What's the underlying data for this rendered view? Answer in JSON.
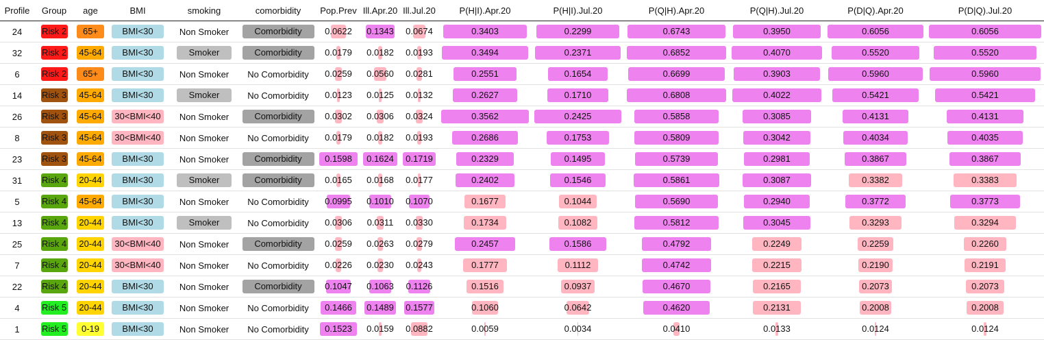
{
  "headers": [
    "Profile",
    "Group",
    "age",
    "BMI",
    "smoking",
    "comorbidity",
    "Pop.Prev",
    "Ill.Apr.20",
    "Ill.Jul.20",
    "P(H|I).Apr.20",
    "P(H|I).Jul.20",
    "P(Q|H).Apr.20",
    "P(Q|H).Jul.20",
    "P(D|Q).Apr.20",
    "P(D|Q).Jul.20"
  ],
  "colors": {
    "risk2": "#ff1a1a",
    "risk3": "#a0520f",
    "risk4": "#5aa60f",
    "risk5": "#22ee22",
    "age65": "#ff8c1a",
    "age4564": "#ffaa00",
    "age2044": "#ffd400",
    "age019": "#ffff33",
    "bmi_low": "#b0dbe6",
    "bmi_mid": "#ffb6c1",
    "smoker": "#bfbfbf",
    "comorbidity": "#a3a3a3",
    "bar_pink": "#ffb6c1",
    "bar_violet": "#ee82ee"
  },
  "rows": [
    {
      "profile": "24",
      "group": "Risk 2",
      "age": "65+",
      "bmi": "BMI<30",
      "smoking": "Non Smoker",
      "comorbidity": "Comorbidity",
      "pop_prev": "0.0622",
      "ill_apr": "0.1343",
      "ill_jul": "0.0674",
      "phi_apr": "0.3403",
      "phi_jul": "0.2299",
      "pqh_apr": "0.6743",
      "pqh_jul": "0.3950",
      "pdq_apr": "0.6056",
      "pdq_jul": "0.6056"
    },
    {
      "profile": "32",
      "group": "Risk 2",
      "age": "45-64",
      "bmi": "BMI<30",
      "smoking": "Smoker",
      "comorbidity": "Comorbidity",
      "pop_prev": "0.0179",
      "ill_apr": "0.0182",
      "ill_jul": "0.0193",
      "phi_apr": "0.3494",
      "phi_jul": "0.2371",
      "pqh_apr": "0.6852",
      "pqh_jul": "0.4070",
      "pdq_apr": "0.5520",
      "pdq_jul": "0.5520"
    },
    {
      "profile": "6",
      "group": "Risk 2",
      "age": "65+",
      "bmi": "BMI<30",
      "smoking": "Non Smoker",
      "comorbidity": "No Comorbidity",
      "pop_prev": "0.0259",
      "ill_apr": "0.0560",
      "ill_jul": "0.0281",
      "phi_apr": "0.2551",
      "phi_jul": "0.1654",
      "pqh_apr": "0.6699",
      "pqh_jul": "0.3903",
      "pdq_apr": "0.5960",
      "pdq_jul": "0.5960"
    },
    {
      "profile": "14",
      "group": "Risk 3",
      "age": "45-64",
      "bmi": "BMI<30",
      "smoking": "Smoker",
      "comorbidity": "No Comorbidity",
      "pop_prev": "0.0123",
      "ill_apr": "0.0125",
      "ill_jul": "0.0132",
      "phi_apr": "0.2627",
      "phi_jul": "0.1710",
      "pqh_apr": "0.6808",
      "pqh_jul": "0.4022",
      "pdq_apr": "0.5421",
      "pdq_jul": "0.5421"
    },
    {
      "profile": "26",
      "group": "Risk 3",
      "age": "45-64",
      "bmi": "30<BMI<40",
      "smoking": "Non Smoker",
      "comorbidity": "Comorbidity",
      "pop_prev": "0.0302",
      "ill_apr": "0.0306",
      "ill_jul": "0.0324",
      "phi_apr": "0.3562",
      "phi_jul": "0.2425",
      "pqh_apr": "0.5858",
      "pqh_jul": "0.3085",
      "pdq_apr": "0.4131",
      "pdq_jul": "0.4131"
    },
    {
      "profile": "8",
      "group": "Risk 3",
      "age": "45-64",
      "bmi": "30<BMI<40",
      "smoking": "Non Smoker",
      "comorbidity": "No Comorbidity",
      "pop_prev": "0.0179",
      "ill_apr": "0.0182",
      "ill_jul": "0.0193",
      "phi_apr": "0.2686",
      "phi_jul": "0.1753",
      "pqh_apr": "0.5809",
      "pqh_jul": "0.3042",
      "pdq_apr": "0.4034",
      "pdq_jul": "0.4035"
    },
    {
      "profile": "23",
      "group": "Risk 3",
      "age": "45-64",
      "bmi": "BMI<30",
      "smoking": "Non Smoker",
      "comorbidity": "Comorbidity",
      "pop_prev": "0.1598",
      "ill_apr": "0.1624",
      "ill_jul": "0.1719",
      "phi_apr": "0.2329",
      "phi_jul": "0.1495",
      "pqh_apr": "0.5739",
      "pqh_jul": "0.2981",
      "pdq_apr": "0.3867",
      "pdq_jul": "0.3867"
    },
    {
      "profile": "31",
      "group": "Risk 4",
      "age": "20-44",
      "bmi": "BMI<30",
      "smoking": "Smoker",
      "comorbidity": "Comorbidity",
      "pop_prev": "0.0165",
      "ill_apr": "0.0168",
      "ill_jul": "0.0177",
      "phi_apr": "0.2402",
      "phi_jul": "0.1546",
      "pqh_apr": "0.5861",
      "pqh_jul": "0.3087",
      "pdq_apr": "0.3382",
      "pdq_jul": "0.3383"
    },
    {
      "profile": "5",
      "group": "Risk 4",
      "age": "45-64",
      "bmi": "BMI<30",
      "smoking": "Non Smoker",
      "comorbidity": "No Comorbidity",
      "pop_prev": "0.0995",
      "ill_apr": "0.1010",
      "ill_jul": "0.1070",
      "phi_apr": "0.1677",
      "phi_jul": "0.1044",
      "pqh_apr": "0.5690",
      "pqh_jul": "0.2940",
      "pdq_apr": "0.3772",
      "pdq_jul": "0.3773"
    },
    {
      "profile": "13",
      "group": "Risk 4",
      "age": "20-44",
      "bmi": "BMI<30",
      "smoking": "Smoker",
      "comorbidity": "No Comorbidity",
      "pop_prev": "0.0306",
      "ill_apr": "0.0311",
      "ill_jul": "0.0330",
      "phi_apr": "0.1734",
      "phi_jul": "0.1082",
      "pqh_apr": "0.5812",
      "pqh_jul": "0.3045",
      "pdq_apr": "0.3293",
      "pdq_jul": "0.3294"
    },
    {
      "profile": "25",
      "group": "Risk 4",
      "age": "20-44",
      "bmi": "30<BMI<40",
      "smoking": "Non Smoker",
      "comorbidity": "Comorbidity",
      "pop_prev": "0.0259",
      "ill_apr": "0.0263",
      "ill_jul": "0.0279",
      "phi_apr": "0.2457",
      "phi_jul": "0.1586",
      "pqh_apr": "0.4792",
      "pqh_jul": "0.2249",
      "pdq_apr": "0.2259",
      "pdq_jul": "0.2260"
    },
    {
      "profile": "7",
      "group": "Risk 4",
      "age": "20-44",
      "bmi": "30<BMI<40",
      "smoking": "Non Smoker",
      "comorbidity": "No Comorbidity",
      "pop_prev": "0.0226",
      "ill_apr": "0.0230",
      "ill_jul": "0.0243",
      "phi_apr": "0.1777",
      "phi_jul": "0.1112",
      "pqh_apr": "0.4742",
      "pqh_jul": "0.2215",
      "pdq_apr": "0.2190",
      "pdq_jul": "0.2191"
    },
    {
      "profile": "22",
      "group": "Risk 4",
      "age": "20-44",
      "bmi": "BMI<30",
      "smoking": "Non Smoker",
      "comorbidity": "Comorbidity",
      "pop_prev": "0.1047",
      "ill_apr": "0.1063",
      "ill_jul": "0.1126",
      "phi_apr": "0.1516",
      "phi_jul": "0.0937",
      "pqh_apr": "0.4670",
      "pqh_jul": "0.2165",
      "pdq_apr": "0.2073",
      "pdq_jul": "0.2073"
    },
    {
      "profile": "4",
      "group": "Risk 5",
      "age": "20-44",
      "bmi": "BMI<30",
      "smoking": "Non Smoker",
      "comorbidity": "No Comorbidity",
      "pop_prev": "0.1466",
      "ill_apr": "0.1489",
      "ill_jul": "0.1577",
      "phi_apr": "0.1060",
      "phi_jul": "0.0642",
      "pqh_apr": "0.4620",
      "pqh_jul": "0.2131",
      "pdq_apr": "0.2008",
      "pdq_jul": "0.2008"
    },
    {
      "profile": "1",
      "group": "Risk 5",
      "age": "0-19",
      "bmi": "BMI<30",
      "smoking": "Non Smoker",
      "comorbidity": "No Comorbidity",
      "pop_prev": "0.1523",
      "ill_apr": "0.0159",
      "ill_jul": "0.0882",
      "phi_apr": "0.0059",
      "phi_jul": "0.0034",
      "pqh_apr": "0.0410",
      "pqh_jul": "0.0133",
      "pdq_apr": "0.0124",
      "pdq_jul": "0.0124"
    }
  ]
}
